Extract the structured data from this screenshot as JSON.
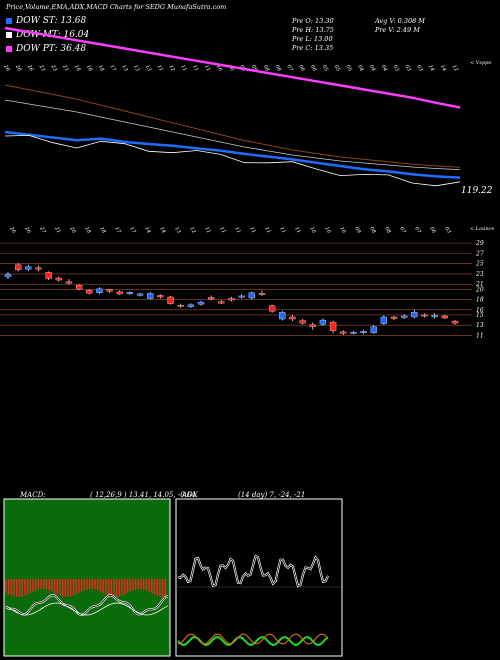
{
  "header": {
    "title": "Price,Volume,EMA,ADX,MACD Charts for SEDG MunafaSutra.com",
    "ohlc": {
      "open": "Pre  O: 13.30",
      "high": "Pre  H: 13.75",
      "low": "Pre  L: 13.00",
      "close": "Pre  C: 13.35",
      "avg_volume": "Avg V: 0.308 M",
      "volume": "Pre  V: 2.49 M"
    }
  },
  "legend": [
    {
      "label": "DOW ST: 13.68",
      "color": "#1e6dff"
    },
    {
      "label": "DOW MT: 16.04",
      "color": "#ffffff"
    },
    {
      "label": "DOW PT: 36.48",
      "color": "#ff3dff"
    }
  ],
  "top_panel": {
    "tag": "< Vsppo",
    "price_label": "119.22",
    "date_labels_top": [
      "26",
      "26",
      "26",
      "23",
      "23",
      "21",
      "18",
      "18",
      "18",
      "17",
      "13",
      "13",
      "13",
      "11",
      "12",
      "11",
      "11",
      "11",
      "10",
      "10",
      "09",
      "09",
      "08",
      "08",
      "07",
      "06",
      "06",
      "05",
      "05",
      "05",
      "04",
      "04",
      "04",
      "03",
      "03",
      "03",
      "14",
      "14",
      "12"
    ],
    "date_labels_bottom": [
      "26",
      "26",
      "27",
      "21",
      "20",
      "18",
      "18",
      "17",
      "17",
      "14",
      "14",
      "13",
      "12",
      "11",
      "11",
      "11",
      "11",
      "11",
      "11",
      "11",
      "10",
      "10",
      "10",
      "09",
      "08",
      "08",
      "07",
      "07",
      "06",
      "03"
    ]
  },
  "candle_panel": {
    "tag": "< Lounce",
    "y_labels": [
      "29",
      "27",
      "25",
      "23",
      "21",
      "20",
      "18",
      "16",
      "15",
      "13",
      "11"
    ]
  },
  "macd": {
    "title": "MACD:",
    "params": "( 12,26,9 ) 13.41, 14.05, -0.64"
  },
  "adx": {
    "title": "ADX",
    "params": "(14 day) 7, -24, -21"
  },
  "chart_data": {
    "type": "line",
    "title": "Price,Volume,EMA,ADX,MACD Charts for SEDG MunafaSutra.com",
    "series": [
      {
        "name": "DOW ST",
        "values": [
          22,
          21.5,
          21,
          20.5,
          20.8,
          20.2,
          19.8,
          19.5,
          19.0,
          18.6,
          18.0,
          17.5,
          17.0,
          16.4,
          15.8,
          15.2,
          14.8,
          14.3,
          13.9,
          13.68
        ]
      },
      {
        "name": "DOW MT",
        "values": [
          23,
          22.6,
          22.2,
          21.8,
          21.3,
          20.8,
          20.3,
          19.8,
          19.3,
          18.8,
          18.3,
          17.9,
          17.5,
          17.2,
          16.9,
          16.7,
          16.5,
          16.3,
          16.15,
          16.04
        ]
      },
      {
        "name": "DOW PT",
        "values": [
          52,
          51.2,
          50.4,
          49.6,
          48.8,
          48.0,
          47.2,
          46.4,
          45.6,
          44.8,
          44.0,
          43.2,
          42.4,
          41.6,
          40.8,
          40.0,
          39.2,
          38.4,
          37.4,
          36.48
        ]
      }
    ],
    "candles": [
      {
        "o": 22.4,
        "c": 22.9,
        "h": 23.4,
        "l": 22.0
      },
      {
        "o": 24.8,
        "c": 23.8,
        "h": 25.1,
        "l": 23.5
      },
      {
        "o": 23.9,
        "c": 24.4,
        "h": 24.8,
        "l": 23.6
      },
      {
        "o": 24.2,
        "c": 23.9,
        "h": 24.6,
        "l": 23.5
      },
      {
        "o": 23.3,
        "c": 22.1,
        "h": 23.5,
        "l": 21.8
      },
      {
        "o": 22.2,
        "c": 21.8,
        "h": 22.5,
        "l": 21.5
      },
      {
        "o": 21.5,
        "c": 21.2,
        "h": 22.0,
        "l": 20.9
      },
      {
        "o": 20.8,
        "c": 20.0,
        "h": 21.0,
        "l": 19.8
      },
      {
        "o": 19.8,
        "c": 19.2,
        "h": 20.0,
        "l": 19.0
      },
      {
        "o": 19.3,
        "c": 20.1,
        "h": 20.4,
        "l": 19.0
      },
      {
        "o": 19.9,
        "c": 19.6,
        "h": 20.1,
        "l": 19.3
      },
      {
        "o": 19.5,
        "c": 19.1,
        "h": 19.8,
        "l": 18.9
      },
      {
        "o": 19.1,
        "c": 19.4,
        "h": 19.6,
        "l": 18.9
      },
      {
        "o": 18.8,
        "c": 19.1,
        "h": 19.3,
        "l": 18.6
      },
      {
        "o": 18.2,
        "c": 19.2,
        "h": 19.5,
        "l": 18.0
      },
      {
        "o": 18.8,
        "c": 18.5,
        "h": 19.0,
        "l": 18.2
      },
      {
        "o": 18.5,
        "c": 17.2,
        "h": 18.7,
        "l": 17.0
      },
      {
        "o": 16.9,
        "c": 16.7,
        "h": 17.2,
        "l": 16.4
      },
      {
        "o": 16.6,
        "c": 17.0,
        "h": 17.3,
        "l": 16.3
      },
      {
        "o": 17.1,
        "c": 17.5,
        "h": 17.8,
        "l": 16.8
      },
      {
        "o": 18.4,
        "c": 18.1,
        "h": 18.8,
        "l": 17.8
      },
      {
        "o": 17.6,
        "c": 17.3,
        "h": 17.9,
        "l": 17.1
      },
      {
        "o": 18.2,
        "c": 17.9,
        "h": 18.5,
        "l": 17.6
      },
      {
        "o": 18.5,
        "c": 18.7,
        "h": 19.0,
        "l": 18.2
      },
      {
        "o": 18.3,
        "c": 19.3,
        "h": 19.6,
        "l": 18.0
      },
      {
        "o": 19.2,
        "c": 19.0,
        "h": 19.8,
        "l": 18.7
      },
      {
        "o": 16.8,
        "c": 15.7,
        "h": 17.0,
        "l": 15.4
      },
      {
        "o": 14.2,
        "c": 15.5,
        "h": 15.8,
        "l": 13.9
      },
      {
        "o": 14.6,
        "c": 14.2,
        "h": 15.0,
        "l": 13.8
      },
      {
        "o": 13.9,
        "c": 13.4,
        "h": 14.2,
        "l": 13.1
      },
      {
        "o": 13.1,
        "c": 12.7,
        "h": 13.5,
        "l": 12.1
      },
      {
        "o": 13.2,
        "c": 14.0,
        "h": 14.3,
        "l": 12.9
      },
      {
        "o": 13.6,
        "c": 11.9,
        "h": 13.9,
        "l": 11.4
      },
      {
        "o": 11.7,
        "c": 11.4,
        "h": 12.0,
        "l": 11.1
      },
      {
        "o": 11.4,
        "c": 11.6,
        "h": 11.9,
        "l": 11.2
      },
      {
        "o": 11.5,
        "c": 11.8,
        "h": 12.1,
        "l": 11.2
      },
      {
        "o": 11.5,
        "c": 12.7,
        "h": 13.0,
        "l": 11.3
      },
      {
        "o": 13.3,
        "c": 14.6,
        "h": 14.9,
        "l": 13.0
      },
      {
        "o": 14.6,
        "c": 14.3,
        "h": 14.8,
        "l": 14.0
      },
      {
        "o": 14.5,
        "c": 14.8,
        "h": 15.1,
        "l": 14.2
      },
      {
        "o": 14.6,
        "c": 15.5,
        "h": 16.0,
        "l": 14.3
      },
      {
        "o": 15.0,
        "c": 14.8,
        "h": 15.3,
        "l": 14.5
      },
      {
        "o": 14.6,
        "c": 14.9,
        "h": 15.4,
        "l": 14.3
      },
      {
        "o": 14.8,
        "c": 14.4,
        "h": 15.0,
        "l": 14.2
      },
      {
        "o": 13.8,
        "c": 13.4,
        "h": 14.0,
        "l": 13.1
      }
    ],
    "ylim": [
      10.5,
      30
    ]
  }
}
